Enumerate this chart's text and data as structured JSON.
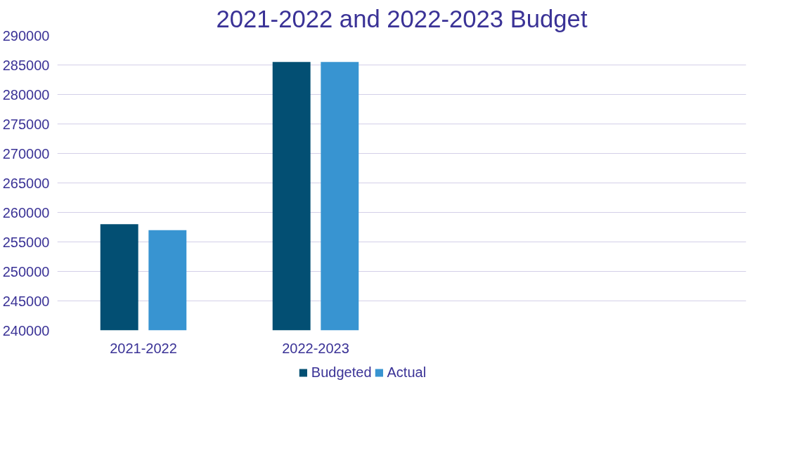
{
  "chart_data": {
    "type": "bar",
    "title": "2021-2022 and 2022-2023 Budget",
    "categories": [
      "2021-2022",
      "2022-2023",
      null,
      null
    ],
    "series": [
      {
        "name": "Budgeted",
        "color": "#034f73",
        "values": [
          258000,
          285500,
          null,
          null
        ]
      },
      {
        "name": "Actual",
        "color": "#3894d1",
        "values": [
          257000,
          285500,
          null,
          null
        ]
      }
    ],
    "ylim": [
      240000,
      290000
    ],
    "yticks": [
      240000,
      245000,
      250000,
      255000,
      260000,
      265000,
      270000,
      275000,
      280000,
      285000,
      290000
    ],
    "grid": "y",
    "legend": "bottom"
  }
}
